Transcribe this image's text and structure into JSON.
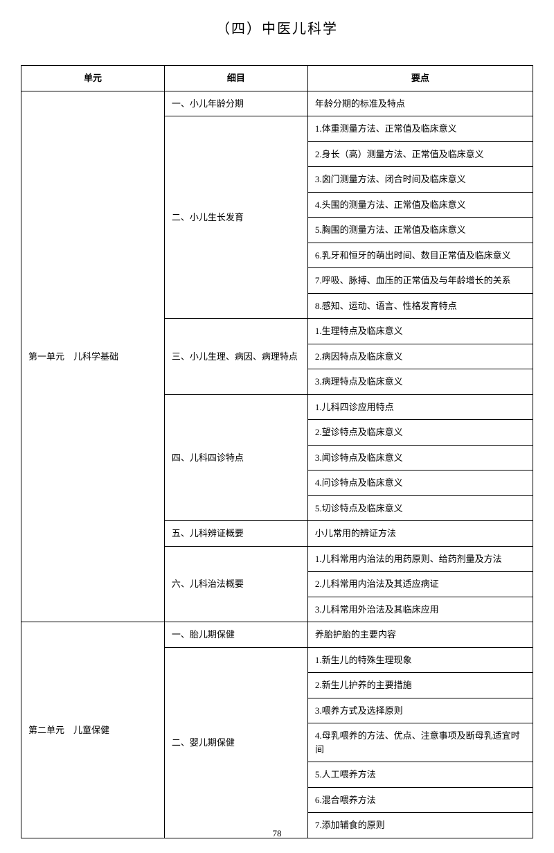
{
  "title": "（四）中医儿科学",
  "pageNumber": "78",
  "headers": {
    "unit": "单元",
    "detail": "细目",
    "point": "要点"
  },
  "rows": [
    {
      "unit": "第一单元　儿科学基础",
      "unitSpan": 21,
      "detail": "一、小儿年龄分期",
      "detailSpan": 1,
      "point": "年龄分期的标准及特点"
    },
    {
      "detail": "二、小儿生长发育",
      "detailSpan": 8,
      "point": "1.体重测量方法、正常值及临床意义"
    },
    {
      "point": "2.身长（高）测量方法、正常值及临床意义"
    },
    {
      "point": "3.囟门测量方法、闭合时间及临床意义"
    },
    {
      "point": "4.头围的测量方法、正常值及临床意义"
    },
    {
      "point": "5.胸围的测量方法、正常值及临床意义"
    },
    {
      "point": "6.乳牙和恒牙的萌出时间、数目正常值及临床意义"
    },
    {
      "point": "7.呼吸、脉搏、血压的正常值及与年龄增长的关系"
    },
    {
      "point": "8.感知、运动、语言、性格发育特点"
    },
    {
      "detail": "三、小儿生理、病因、病理特点",
      "detailSpan": 3,
      "point": "1.生理特点及临床意义"
    },
    {
      "point": "2.病因特点及临床意义"
    },
    {
      "point": "3.病理特点及临床意义"
    },
    {
      "detail": "四、儿科四诊特点",
      "detailSpan": 5,
      "point": "1.儿科四诊应用特点"
    },
    {
      "point": "2.望诊特点及临床意义"
    },
    {
      "point": "3.闻诊特点及临床意义"
    },
    {
      "point": "4.问诊特点及临床意义"
    },
    {
      "point": "5.切诊特点及临床意义"
    },
    {
      "detail": "五、儿科辨证概要",
      "detailSpan": 1,
      "point": "小儿常用的辨证方法"
    },
    {
      "detail": "六、儿科治法概要",
      "detailSpan": 3,
      "point": "1.儿科常用内治法的用药原则、给药剂量及方法"
    },
    {
      "point": "2.儿科常用内治法及其适应病证"
    },
    {
      "point": "3.儿科常用外治法及其临床应用"
    },
    {
      "unit": "第二单元　儿童保健",
      "unitSpan": 8,
      "detail": "一、胎儿期保健",
      "detailSpan": 1,
      "point": "养胎护胎的主要内容"
    },
    {
      "detail": "二、婴儿期保健",
      "detailSpan": 7,
      "point": "1.新生儿的特殊生理现象"
    },
    {
      "point": "2.新生儿护养的主要措施"
    },
    {
      "point": "3.喂养方式及选择原则"
    },
    {
      "point": "4.母乳喂养的方法、优点、注意事项及断母乳适宜时间"
    },
    {
      "point": "5.人工喂养方法"
    },
    {
      "point": "6.混合喂养方法"
    },
    {
      "point": "7.添加辅食的原则"
    }
  ]
}
